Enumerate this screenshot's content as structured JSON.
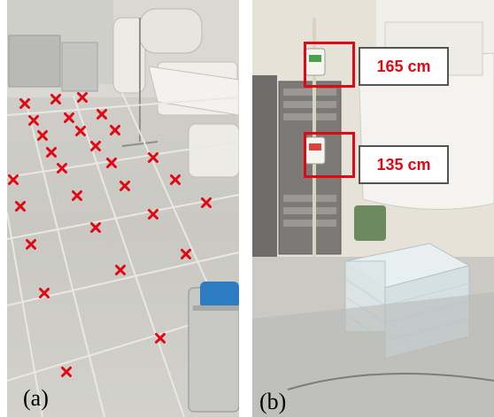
{
  "panel_a": {
    "caption": "(a)",
    "marker_color": "#e30613",
    "marker_count": 32
  },
  "panel_b": {
    "caption": "(b)",
    "upper_height_label": "165 cm",
    "lower_height_label": "135 cm",
    "highlight_color": "#e30613"
  }
}
